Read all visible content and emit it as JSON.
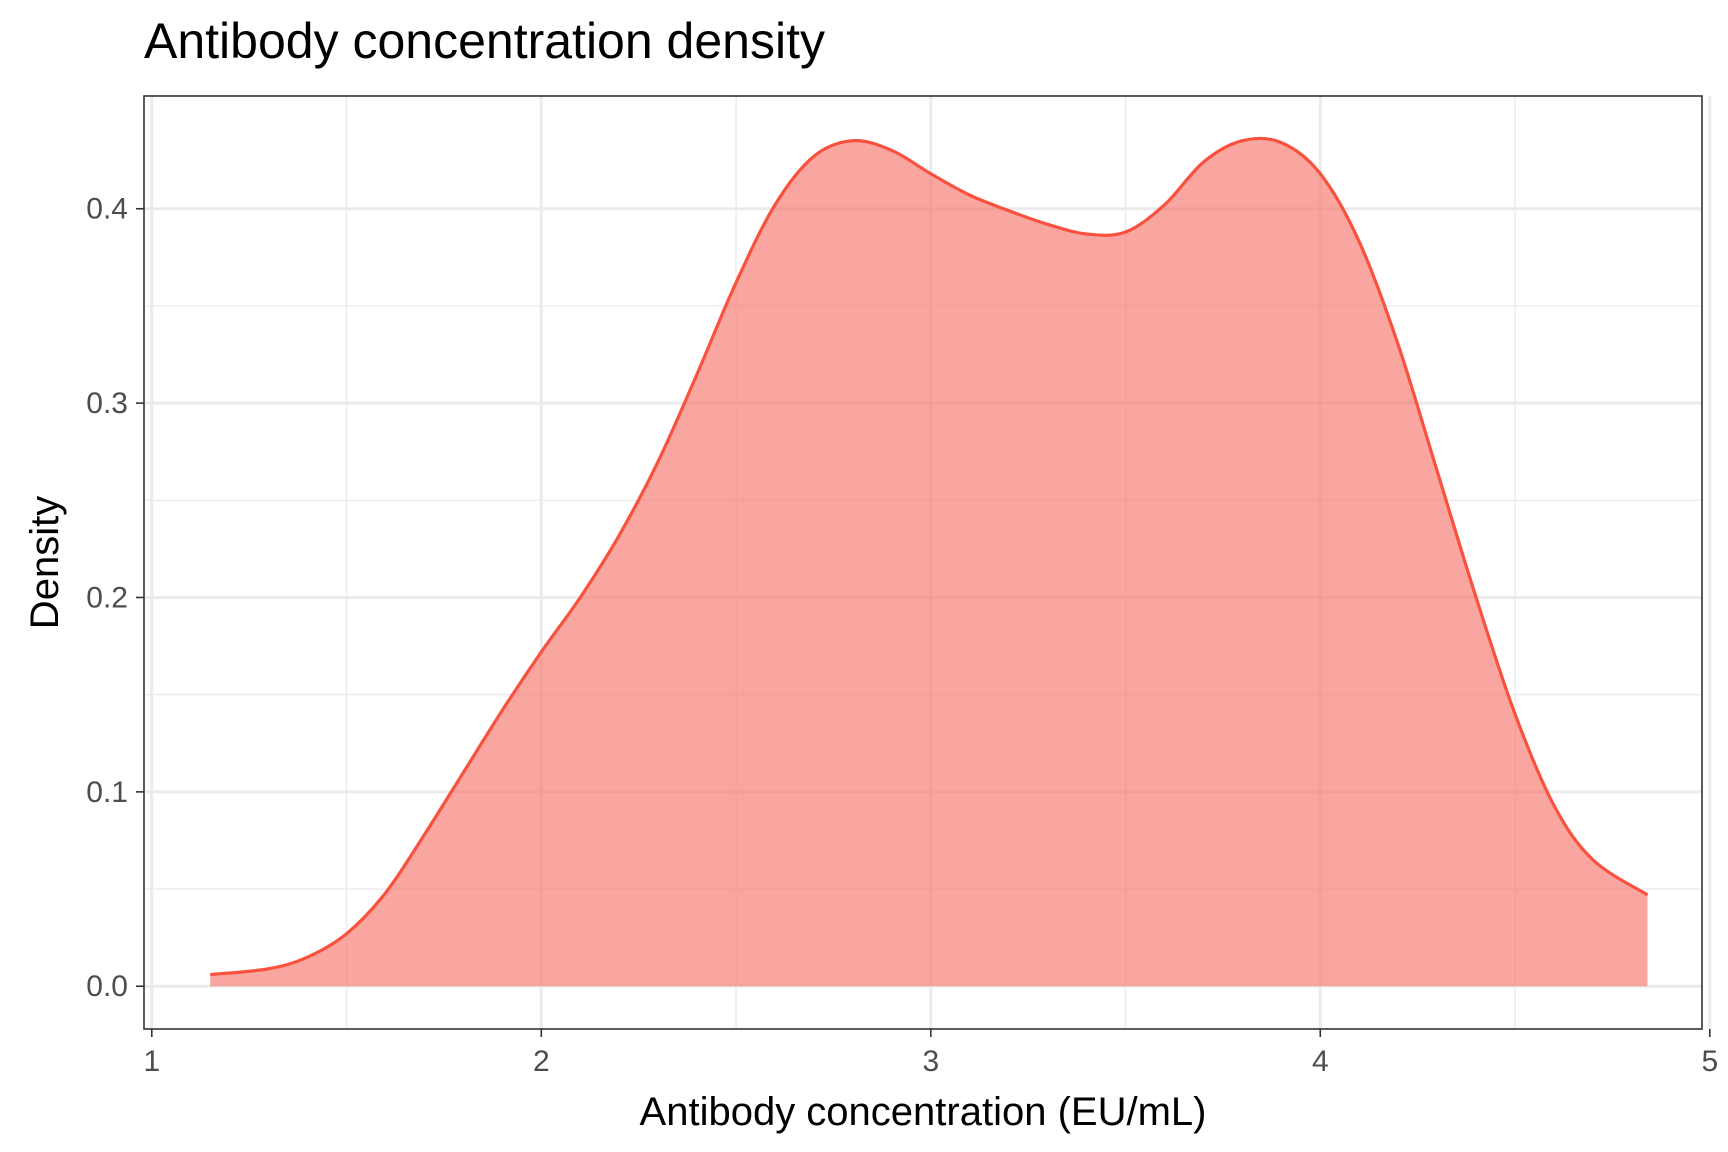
{
  "chart_data": {
    "type": "area",
    "title": "Antibody concentration density",
    "xlabel": "Antibody concentration (EU/mL)",
    "ylabel": "Density",
    "xlim": [
      0.98,
      4.98
    ],
    "ylim": [
      -0.022,
      0.458
    ],
    "x_ticks": [
      1,
      2,
      3,
      4,
      5
    ],
    "x_tick_labels": [
      "1",
      "2",
      "3",
      "4",
      "5"
    ],
    "y_ticks": [
      0.0,
      0.1,
      0.2,
      0.3,
      0.4
    ],
    "y_tick_labels": [
      "0.0",
      "0.1",
      "0.2",
      "0.3",
      "0.4"
    ],
    "grid": true,
    "legend": "none",
    "fill_color": "#F8766D",
    "fill_opacity": 0.65,
    "line_color": "#F8523E",
    "series": [
      {
        "x": [
          1.15,
          1.3,
          1.4,
          1.5,
          1.6,
          1.7,
          1.8,
          1.9,
          2.0,
          2.1,
          2.2,
          2.3,
          2.4,
          2.5,
          2.6,
          2.7,
          2.8,
          2.9,
          3.0,
          3.1,
          3.2,
          3.3,
          3.4,
          3.5,
          3.6,
          3.7,
          3.8,
          3.9,
          4.0,
          4.1,
          4.2,
          4.3,
          4.4,
          4.5,
          4.6,
          4.7,
          4.84
        ],
        "y": [
          0.006,
          0.009,
          0.015,
          0.027,
          0.048,
          0.078,
          0.11,
          0.142,
          0.172,
          0.2,
          0.232,
          0.27,
          0.315,
          0.362,
          0.402,
          0.427,
          0.435,
          0.43,
          0.418,
          0.407,
          0.399,
          0.392,
          0.387,
          0.388,
          0.402,
          0.424,
          0.435,
          0.434,
          0.418,
          0.383,
          0.33,
          0.265,
          0.2,
          0.14,
          0.093,
          0.065,
          0.047
        ]
      }
    ]
  }
}
